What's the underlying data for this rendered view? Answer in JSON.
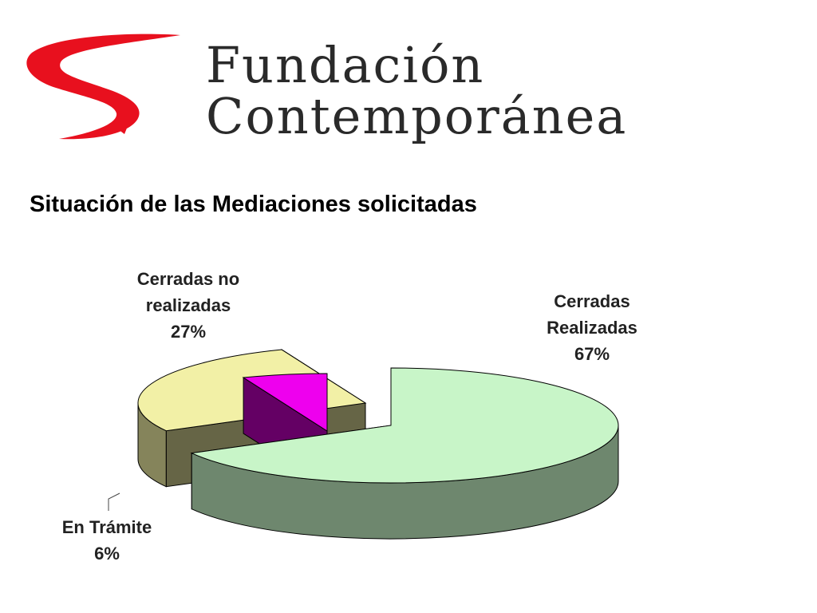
{
  "logo": {
    "line1": "Fundación",
    "line2": "Contemporánea",
    "mark_color": "#e8101e",
    "text_color": "#2a2a2a"
  },
  "title": "Situación de las Mediaciones solicitadas",
  "chart_data": {
    "type": "pie",
    "title": "Situación de las Mediaciones solicitadas",
    "style": "3d-exploded",
    "slices": [
      {
        "name": "Cerradas Realizadas",
        "label_lines": [
          "Cerradas",
          "Realizadas"
        ],
        "value": 67,
        "value_label": "67%",
        "color": "#c8f5c8"
      },
      {
        "name": "Cerradas no realizadas",
        "label_lines": [
          "Cerradas no",
          "realizadas"
        ],
        "value": 27,
        "value_label": "27%",
        "color": "#f2f0a6"
      },
      {
        "name": "En Trámite",
        "label_lines": [
          "En Trámite"
        ],
        "value": 6,
        "value_label": "6%",
        "color": "#ee00ee"
      }
    ],
    "legend": false
  }
}
